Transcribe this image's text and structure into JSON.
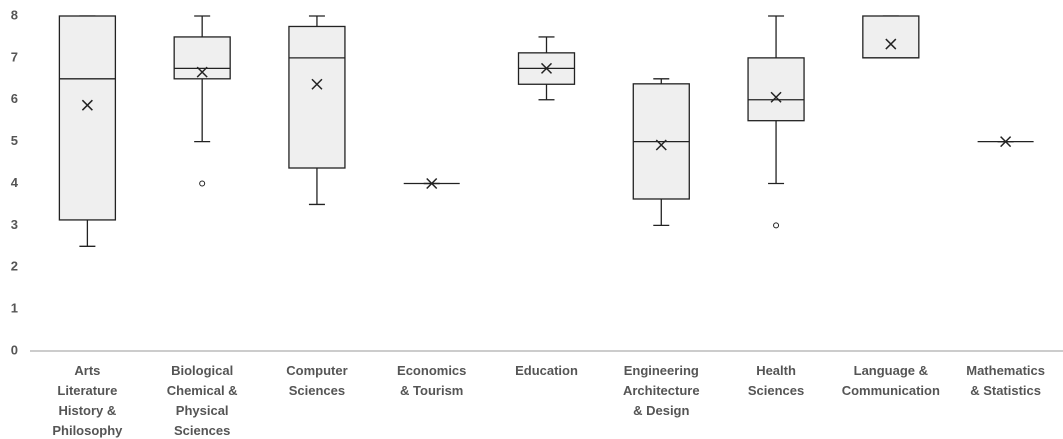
{
  "chart_data": {
    "type": "box",
    "categories": [
      "Arts\nLiterature\nHistory &\nPhilosophy",
      "Biological\nChemical &\nPhysical\nSciences",
      "Computer\nSciences",
      "Economics\n& Tourism",
      "Education",
      "Engineering\nArchitecture\n& Design",
      "Health\nSciences",
      "Language &\nCommunication",
      "Mathematics\n& Statistics"
    ],
    "boxes": [
      {
        "min": 2.5,
        "q1": 3.13,
        "median": 6.5,
        "q3": 8,
        "max": 8,
        "mean": 5.87
      },
      {
        "min": 5,
        "q1": 6.5,
        "median": 6.75,
        "q3": 7.5,
        "max": 8,
        "mean": 6.66,
        "outliers": [
          4
        ]
      },
      {
        "min": 3.5,
        "q1": 4.37,
        "median": 7,
        "q3": 7.75,
        "max": 8,
        "mean": 6.37
      },
      {
        "min": 4,
        "q1": 4,
        "median": 4,
        "q3": 4,
        "max": 4,
        "mean": 4
      },
      {
        "min": 6,
        "q1": 6.37,
        "median": 6.75,
        "q3": 7.12,
        "max": 7.5,
        "mean": 6.75
      },
      {
        "min": 3,
        "q1": 3.63,
        "median": 5,
        "q3": 6.38,
        "max": 6.5,
        "mean": 4.92
      },
      {
        "min": 4,
        "q1": 5.5,
        "median": 6,
        "q3": 7,
        "max": 8,
        "mean": 6.06,
        "outliers": [
          3
        ]
      },
      {
        "min": 7,
        "q1": 7,
        "median": 7,
        "q3": 8,
        "max": 8,
        "mean": 7.33
      },
      {
        "min": 5,
        "q1": 5,
        "median": 5,
        "q3": 5,
        "max": 5,
        "mean": 5
      }
    ],
    "color": "#efefef",
    "ylim": [
      0,
      8
    ],
    "yticks": [
      0,
      1,
      2,
      3,
      4,
      5,
      6,
      7,
      8
    ],
    "grid": false
  }
}
